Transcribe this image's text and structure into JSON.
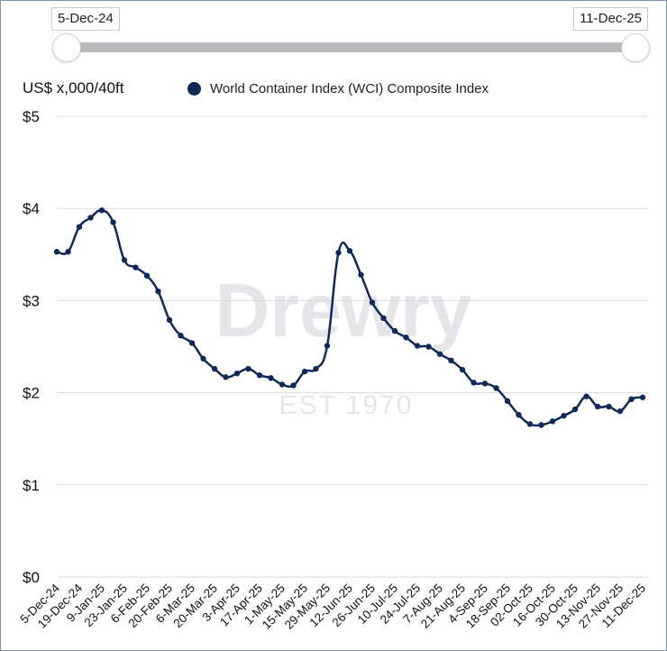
{
  "range": {
    "start_label": "5-Dec-24",
    "end_label": "11-Dec-25"
  },
  "unit_label": "US$ x,000/40ft",
  "watermark": {
    "brand": "Drewry",
    "tagline": "EST 1970"
  },
  "colors": {
    "series": "#0f2a57",
    "grid": "#d9d9d9",
    "slider_track": "#b8babd"
  },
  "chart_data": {
    "type": "line",
    "title": "",
    "xlabel": "",
    "ylabel": "US$ x,000/40ft",
    "ylim": [
      0,
      5
    ],
    "y_ticks": [
      "$0",
      "$1",
      "$2",
      "$3",
      "$4",
      "$5"
    ],
    "grid": true,
    "legend_position": "top",
    "x_tick_labels": [
      "5-Dec-24",
      "19-Dec-24",
      "9-Jan-25",
      "23-Jan-25",
      "6-Feb-25",
      "20-Feb-25",
      "6-Mar-25",
      "20-Mar-25",
      "3-Apr-25",
      "17-Apr-25",
      "1-May-25",
      "15-May-25",
      "29-May-25",
      "12-Jun-25",
      "26-Jun-25",
      "10-Jul-25",
      "24-Jul-25",
      "7-Aug-25",
      "21-Aug-25",
      "4-Sep-25",
      "18-Sep-25",
      "02-Oct-25",
      "16-Oct-25",
      "30-Oct-25",
      "13-Nov-25",
      "27-Nov-25",
      "11-Dec-25"
    ],
    "x": [
      "5-Dec-24",
      "12-Dec-24",
      "19-Dec-24",
      "2-Jan-25",
      "9-Jan-25",
      "16-Jan-25",
      "23-Jan-25",
      "30-Jan-25",
      "6-Feb-25",
      "13-Feb-25",
      "20-Feb-25",
      "27-Feb-25",
      "6-Mar-25",
      "13-Mar-25",
      "20-Mar-25",
      "27-Mar-25",
      "3-Apr-25",
      "10-Apr-25",
      "17-Apr-25",
      "24-Apr-25",
      "1-May-25",
      "8-May-25",
      "15-May-25",
      "22-May-25",
      "29-May-25",
      "5-Jun-25",
      "12-Jun-25",
      "19-Jun-25",
      "26-Jun-25",
      "3-Jul-25",
      "10-Jul-25",
      "17-Jul-25",
      "24-Jul-25",
      "31-Jul-25",
      "7-Aug-25",
      "14-Aug-25",
      "21-Aug-25",
      "28-Aug-25",
      "4-Sep-25",
      "11-Sep-25",
      "18-Sep-25",
      "25-Sep-25",
      "02-Oct-25",
      "09-Oct-25",
      "16-Oct-25",
      "23-Oct-25",
      "30-Oct-25",
      "06-Nov-25",
      "13-Nov-25",
      "20-Nov-25",
      "27-Nov-25",
      "04-Dec-25",
      "11-Dec-25"
    ],
    "series": [
      {
        "name": "World Container Index (WCI) Composite Index",
        "color": "#0f2a57",
        "values": [
          3.53,
          3.53,
          3.8,
          3.9,
          3.98,
          3.85,
          3.44,
          3.36,
          3.27,
          3.1,
          2.79,
          2.62,
          2.54,
          2.37,
          2.26,
          2.17,
          2.21,
          2.26,
          2.19,
          2.16,
          2.09,
          2.08,
          2.23,
          2.26,
          2.51,
          3.52,
          3.54,
          3.28,
          2.98,
          2.81,
          2.67,
          2.6,
          2.51,
          2.5,
          2.42,
          2.35,
          2.25,
          2.11,
          2.1,
          2.05,
          1.91,
          1.76,
          1.66,
          1.65,
          1.69,
          1.75,
          1.82,
          1.96,
          1.85,
          1.85,
          1.8,
          1.93,
          1.95
        ]
      }
    ]
  }
}
